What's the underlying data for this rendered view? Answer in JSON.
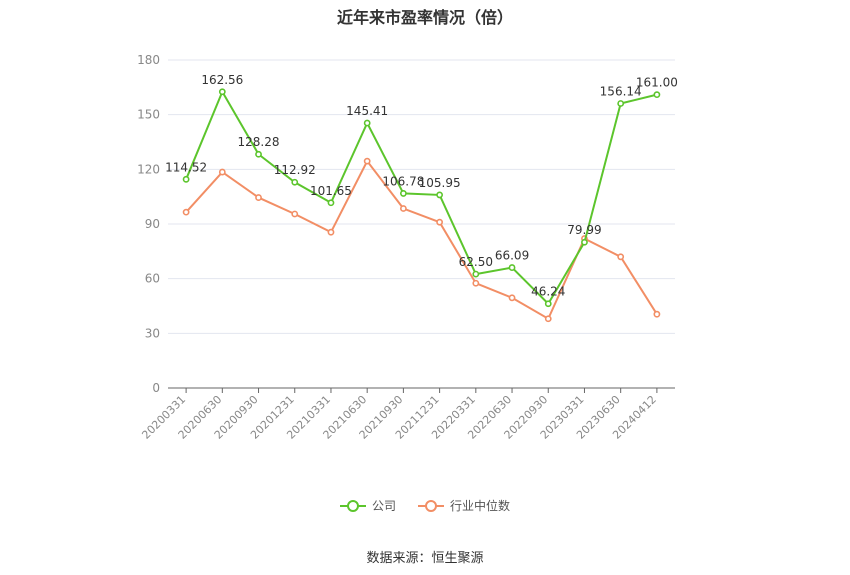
{
  "chart_data": {
    "type": "line",
    "title": "近年来市盈率情况（倍）",
    "categories": [
      "20200331",
      "20200630",
      "20200930",
      "20201231",
      "20210331",
      "20210630",
      "20210930",
      "20211231",
      "20220331",
      "20220630",
      "20220930",
      "20230331",
      "20230630",
      "20240412"
    ],
    "series": [
      {
        "name": "公司",
        "color": "#5cc52c",
        "values": [
          114.52,
          162.56,
          128.28,
          112.92,
          101.65,
          145.41,
          106.78,
          105.95,
          62.5,
          66.09,
          46.24,
          79.99,
          156.14,
          161.0
        ],
        "labels": [
          "114.52",
          "162.56",
          "128.28",
          "112.92",
          "101.65",
          "145.41",
          "106.78",
          "105.95",
          "62.50",
          "66.09",
          "46.24",
          "79.99",
          "156.14",
          "161.00"
        ]
      },
      {
        "name": "行业中位数",
        "color": "#f28e65",
        "values": [
          96.5,
          118.5,
          104.5,
          95.5,
          85.5,
          124.5,
          98.5,
          91.0,
          57.5,
          49.5,
          38.0,
          82.0,
          72.0,
          40.5
        ]
      }
    ],
    "yticks": [
      0,
      30,
      60,
      90,
      120,
      150,
      180
    ],
    "ylim": [
      0,
      180
    ],
    "grid": true,
    "legend_position": "bottom"
  },
  "source_text": "数据来源：恒生聚源"
}
